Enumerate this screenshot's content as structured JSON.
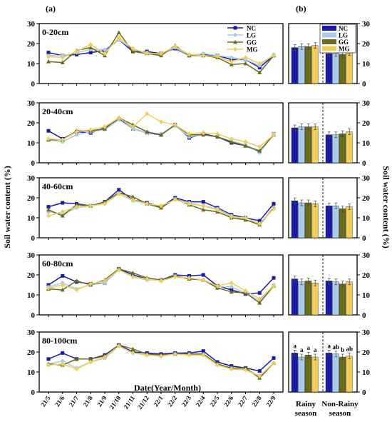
{
  "figure": {
    "label_a": "(a)",
    "label_b": "(b)",
    "ylabel_left": "Soil water content (%)",
    "ylabel_right": "Soil water content (%)",
    "xlabel": "Date(Year/Month)",
    "season_labels": [
      "Rainy\nseason",
      "Non-Rainy\nseason"
    ]
  },
  "colors": {
    "NC": "#1a1aa8",
    "LG": "#a9cde8",
    "GG": "#6b6b1e",
    "MG": "#f1cd5a"
  },
  "chart_data": [
    {
      "type": "line",
      "panel": "a",
      "depth": "0-20cm",
      "x": [
        "21/5",
        "21/6",
        "21/7",
        "21/8",
        "21/9",
        "21/10",
        "21/11",
        "21/12",
        "22/1",
        "22/2",
        "22/3",
        "22/4",
        "22/5",
        "22/6",
        "22/7",
        "22/8",
        "22/9"
      ],
      "ylim": [
        0,
        30
      ],
      "yticks": [
        0,
        10,
        20,
        30
      ],
      "legend": "top-right",
      "series": [
        {
          "name": "NC",
          "values": [
            15.5,
            14,
            14.5,
            15.5,
            16.5,
            22,
            16,
            16,
            15,
            17.5,
            14,
            14.5,
            14,
            12,
            12,
            8,
            14
          ]
        },
        {
          "name": "LG",
          "values": [
            14,
            14,
            15.5,
            17,
            17,
            22,
            17,
            15.5,
            14.5,
            18,
            14,
            15,
            14,
            13,
            12,
            9,
            14.5
          ]
        },
        {
          "name": "GG",
          "values": [
            11,
            10.5,
            16.5,
            18,
            14,
            25.5,
            16,
            15,
            14,
            19,
            14,
            14,
            13,
            9.5,
            10,
            5.5,
            14
          ]
        },
        {
          "name": "MG",
          "values": [
            13.5,
            13,
            16,
            19.5,
            15,
            23,
            17.5,
            15,
            15,
            18.5,
            14.5,
            14,
            13.5,
            11,
            13,
            10,
            14
          ]
        }
      ]
    },
    {
      "type": "line",
      "panel": "a",
      "depth": "20-40cm",
      "x": [
        "21/5",
        "21/6",
        "21/7",
        "21/8",
        "21/9",
        "21/10",
        "21/11",
        "21/12",
        "22/1",
        "22/2",
        "22/3",
        "22/4",
        "22/5",
        "22/6",
        "22/7",
        "22/8",
        "22/9"
      ],
      "ylim": [
        0,
        30
      ],
      "yticks": [
        0,
        10,
        20,
        30
      ],
      "series": [
        {
          "name": "NC",
          "values": [
            16,
            12,
            15.5,
            15,
            17.5,
            22,
            17,
            15,
            14,
            19,
            12.5,
            14.5,
            13,
            10,
            8.5,
            5.5,
            14.5
          ]
        },
        {
          "name": "LG",
          "values": [
            11.5,
            10.5,
            14,
            15.5,
            16.5,
            21.5,
            17,
            15,
            14.5,
            18.5,
            13,
            14,
            13,
            11,
            9,
            5,
            14.5
          ]
        },
        {
          "name": "GG",
          "values": [
            11.5,
            11.5,
            16,
            16,
            17,
            22.5,
            19,
            15.5,
            14,
            19,
            14,
            14,
            13,
            10.5,
            8.5,
            6,
            14
          ]
        },
        {
          "name": "MG",
          "values": [
            12,
            11.5,
            15.5,
            16.5,
            18,
            22.5,
            18,
            24.5,
            20.5,
            19,
            14.5,
            15,
            14.5,
            12,
            10.5,
            8,
            14
          ]
        }
      ]
    },
    {
      "type": "line",
      "panel": "a",
      "depth": "40-60cm",
      "x": [
        "21/5",
        "21/6",
        "21/7",
        "21/8",
        "21/9",
        "21/10",
        "21/11",
        "21/12",
        "22/1",
        "22/2",
        "22/3",
        "22/4",
        "22/5",
        "22/6",
        "22/7",
        "22/8",
        "22/9"
      ],
      "ylim": [
        0,
        30
      ],
      "yticks": [
        0,
        10,
        20,
        30
      ],
      "series": [
        {
          "name": "NC",
          "values": [
            15.5,
            17.5,
            17,
            16,
            18,
            24,
            19,
            17.5,
            15.5,
            20,
            18,
            18,
            15,
            11.5,
            10,
            8.5,
            17
          ]
        },
        {
          "name": "LG",
          "values": [
            13,
            12,
            15,
            16,
            17,
            22,
            18.5,
            17,
            15,
            19.5,
            17.5,
            16,
            14.5,
            11,
            9,
            7,
            15
          ]
        },
        {
          "name": "GG",
          "values": [
            14,
            11,
            16.5,
            16,
            18,
            22.5,
            20.5,
            17,
            15,
            19.5,
            16.5,
            14,
            13,
            10,
            9,
            6.5,
            15
          ]
        },
        {
          "name": "MG",
          "values": [
            11,
            13,
            15.5,
            16,
            17,
            22,
            19,
            17,
            16,
            19,
            17,
            16,
            14,
            10.5,
            10,
            7,
            14.5
          ]
        }
      ]
    },
    {
      "type": "line",
      "panel": "a",
      "depth": "60-80cm",
      "x": [
        "21/5",
        "21/6",
        "21/7",
        "21/8",
        "21/9",
        "21/10",
        "21/11",
        "21/12",
        "22/1",
        "22/2",
        "22/3",
        "22/4",
        "22/5",
        "22/6",
        "22/7",
        "22/8",
        "22/9"
      ],
      "ylim": [
        0,
        30
      ],
      "yticks": [
        0,
        10,
        20,
        30
      ],
      "series": [
        {
          "name": "NC",
          "values": [
            15,
            19.5,
            16.5,
            15.5,
            16,
            23,
            20,
            18,
            17.5,
            20,
            19.5,
            20,
            14.5,
            12.5,
            10.5,
            11,
            18.5
          ]
        },
        {
          "name": "LG",
          "values": [
            14,
            16,
            13,
            15,
            16,
            22.5,
            19,
            17.5,
            17.5,
            19.5,
            18,
            17.5,
            14,
            14,
            11,
            7,
            15
          ]
        },
        {
          "name": "GG",
          "values": [
            13,
            12.5,
            17,
            15,
            17.5,
            23,
            21,
            18.5,
            17.5,
            19.5,
            18,
            17.5,
            13.5,
            11.5,
            11,
            6,
            14.5
          ]
        },
        {
          "name": "MG",
          "values": [
            13.5,
            15,
            12.5,
            15.5,
            17,
            22.5,
            19,
            18,
            17,
            19,
            18.5,
            17.5,
            14.5,
            16,
            12,
            8,
            14.5
          ]
        }
      ]
    },
    {
      "type": "line",
      "panel": "a",
      "depth": "80-100cm",
      "x": [
        "21/5",
        "21/6",
        "21/7",
        "21/8",
        "21/9",
        "21/10",
        "21/11",
        "21/12",
        "22/1",
        "22/2",
        "22/3",
        "22/4",
        "22/5",
        "22/6",
        "22/7",
        "22/8",
        "22/9"
      ],
      "ylim": [
        0,
        30
      ],
      "yticks": [
        0,
        10,
        20,
        30
      ],
      "series": [
        {
          "name": "NC",
          "values": [
            16.5,
            19.5,
            16.5,
            16.5,
            18.5,
            23.5,
            20,
            19.5,
            19,
            19.5,
            19.5,
            20.5,
            15,
            13,
            12,
            10.5,
            17
          ]
        },
        {
          "name": "LG",
          "values": [
            14,
            15.5,
            12,
            15,
            17,
            23,
            19.5,
            18.5,
            18,
            19,
            19,
            19,
            14,
            12,
            11.5,
            8,
            14.5
          ]
        },
        {
          "name": "GG",
          "values": [
            14,
            13.5,
            16.5,
            16.5,
            18,
            23.5,
            21.5,
            19,
            18.5,
            19,
            19,
            19,
            14,
            12,
            12,
            7,
            14.5
          ]
        },
        {
          "name": "MG",
          "values": [
            13.5,
            14,
            11.5,
            15,
            17.5,
            23,
            19.5,
            18.5,
            18,
            19,
            18.5,
            18.5,
            13.5,
            11.5,
            11,
            8,
            14.5
          ]
        }
      ]
    },
    {
      "type": "bar",
      "panel": "b",
      "depth": "0-20cm",
      "categories": [
        "Rainy season",
        "Non-Rainy season"
      ],
      "ylim": [
        0,
        30
      ],
      "legend": "top",
      "series": [
        {
          "name": "NC",
          "values": [
            18,
            15
          ]
        },
        {
          "name": "LG",
          "values": [
            18.5,
            15
          ]
        },
        {
          "name": "GG",
          "values": [
            18.5,
            14.5
          ]
        },
        {
          "name": "MG",
          "values": [
            19,
            15.5
          ]
        }
      ]
    },
    {
      "type": "bar",
      "panel": "b",
      "depth": "20-40cm",
      "categories": [
        "Rainy season",
        "Non-Rainy season"
      ],
      "ylim": [
        0,
        30
      ],
      "series": [
        {
          "name": "NC",
          "values": [
            17.5,
            14
          ]
        },
        {
          "name": "LG",
          "values": [
            18,
            14
          ]
        },
        {
          "name": "GG",
          "values": [
            18,
            14.5
          ]
        },
        {
          "name": "MG",
          "values": [
            18,
            15.5
          ]
        }
      ]
    },
    {
      "type": "bar",
      "panel": "b",
      "depth": "40-60cm",
      "categories": [
        "Rainy season",
        "Non-Rainy season"
      ],
      "ylim": [
        0,
        30
      ],
      "series": [
        {
          "name": "NC",
          "values": [
            18.5,
            16
          ]
        },
        {
          "name": "LG",
          "values": [
            17.5,
            16
          ]
        },
        {
          "name": "GG",
          "values": [
            17.5,
            14.5
          ]
        },
        {
          "name": "MG",
          "values": [
            17,
            15.5
          ]
        }
      ]
    },
    {
      "type": "bar",
      "panel": "b",
      "depth": "60-80cm",
      "categories": [
        "Rainy season",
        "Non-Rainy season"
      ],
      "ylim": [
        0,
        30
      ],
      "series": [
        {
          "name": "NC",
          "values": [
            18,
            17
          ]
        },
        {
          "name": "LG",
          "values": [
            16.5,
            16.5
          ]
        },
        {
          "name": "GG",
          "values": [
            17,
            15.5
          ]
        },
        {
          "name": "MG",
          "values": [
            16,
            16.5
          ]
        }
      ]
    },
    {
      "type": "bar",
      "panel": "b",
      "depth": "80-100cm",
      "categories": [
        "Rainy season",
        "Non-Rainy season"
      ],
      "ylim": [
        0,
        30
      ],
      "series": [
        {
          "name": "NC",
          "values": [
            19.5,
            19.5
          ],
          "letters": [
            "a",
            "a"
          ]
        },
        {
          "name": "LG",
          "values": [
            17.5,
            19
          ],
          "letters": [
            "a",
            "ab"
          ]
        },
        {
          "name": "GG",
          "values": [
            18.5,
            17.5
          ],
          "letters": [
            "a",
            "b"
          ]
        },
        {
          "name": "MG",
          "values": [
            17.5,
            18
          ],
          "letters": [
            "a",
            "ab"
          ]
        }
      ]
    }
  ]
}
